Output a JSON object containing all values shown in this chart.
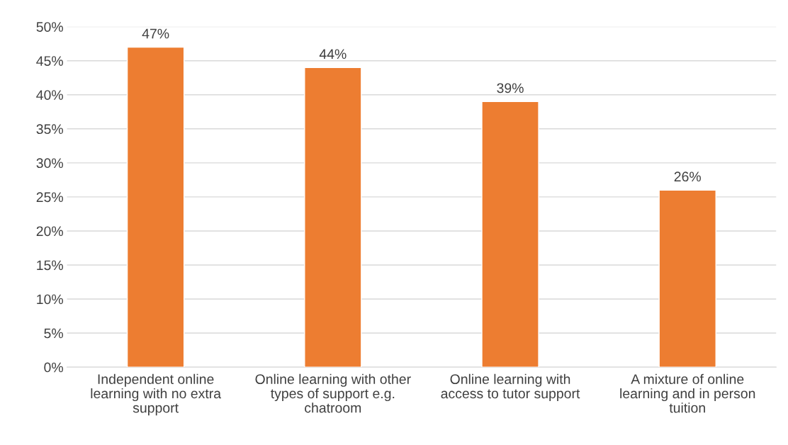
{
  "chart_data": {
    "type": "bar",
    "categories": [
      "Independent online learning with no extra support",
      "Online learning with other types of support e.g. chatroom",
      "Online learning with access to tutor support",
      "A mixture of online learning and in person tuition"
    ],
    "values": [
      47,
      44,
      39,
      26
    ],
    "color": "#ed7d31",
    "value_labels": [
      "47%",
      "44%",
      "39%",
      "26%"
    ],
    "ylim": [
      0,
      50
    ],
    "yticks": [
      {
        "value": 0,
        "label": "0%"
      },
      {
        "value": 5,
        "label": "5%"
      },
      {
        "value": 10,
        "label": "10%"
      },
      {
        "value": 15,
        "label": "15%"
      },
      {
        "value": 20,
        "label": "20%"
      },
      {
        "value": 25,
        "label": "25%"
      },
      {
        "value": 30,
        "label": "30%"
      },
      {
        "value": 35,
        "label": "35%"
      },
      {
        "value": 40,
        "label": "40%"
      },
      {
        "value": 45,
        "label": "45%"
      },
      {
        "value": 50,
        "label": "50%"
      }
    ],
    "grid": "y"
  }
}
